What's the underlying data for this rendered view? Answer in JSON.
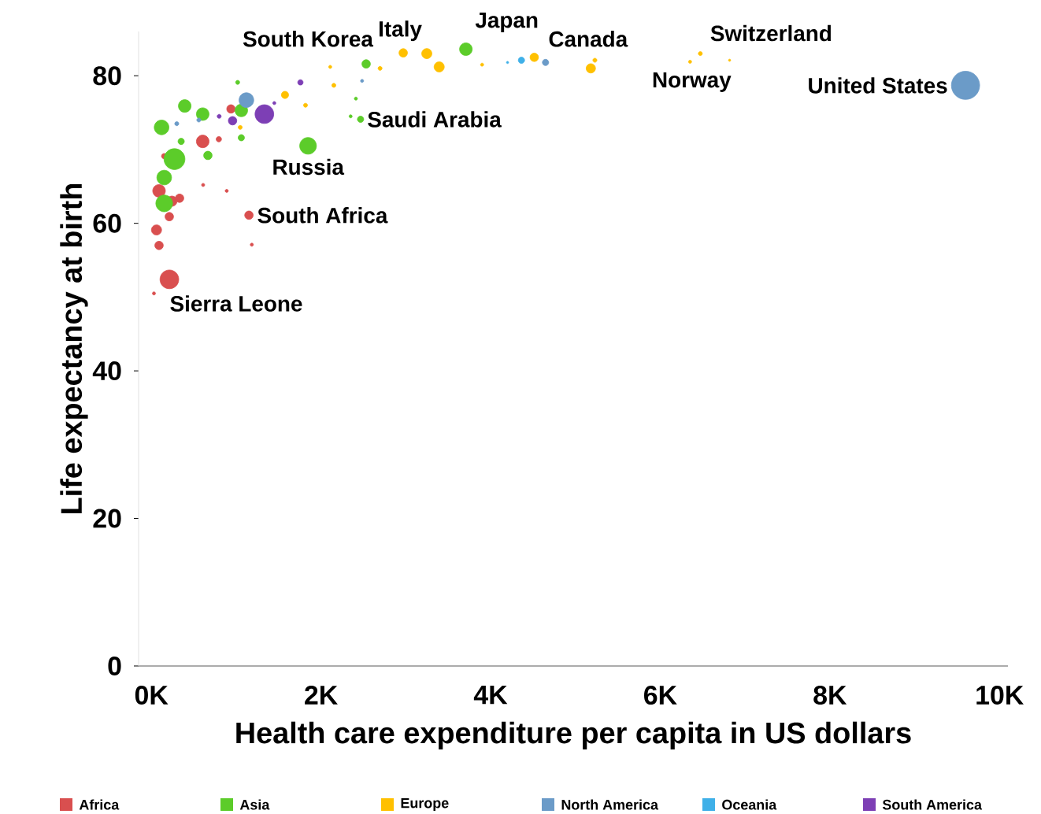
{
  "chart_data": {
    "type": "bubble",
    "xlabel": "Health care expenditure per capita in US dollars",
    "ylabel": "Life expectancy at birth",
    "xlim": [
      -150,
      10100
    ],
    "xticks": [
      {
        "value": 0,
        "label": "0K"
      },
      {
        "value": 2000,
        "label": "2K"
      },
      {
        "value": 4000,
        "label": "4K"
      },
      {
        "value": 6000,
        "label": "6K"
      },
      {
        "value": 8000,
        "label": "8K"
      },
      {
        "value": 10000,
        "label": "10K"
      }
    ],
    "ylim": [
      0,
      86
    ],
    "yticks": [
      0,
      20,
      40,
      60,
      80
    ],
    "legend": "bottom",
    "marker": "circle",
    "series": [
      {
        "name": "Africa",
        "color": "#d94f4f",
        "x": [
          213,
          1151,
          606,
          939,
          91,
          243,
          212,
          61,
          91,
          333,
          152,
          31,
          611,
          889,
          1185,
          796
        ],
        "values": [
          52.4,
          61.1,
          71.1,
          75.5,
          64.4,
          63.0,
          60.9,
          59.1,
          57.0,
          63.4,
          69.1,
          50.5,
          65.2,
          64.4,
          57.1,
          71.4
        ],
        "sizes": [
          0.44,
          0.09,
          0.2,
          0.09,
          0.2,
          0.13,
          0.09,
          0.13,
          0.09,
          0.09,
          0.036,
          0.012,
          0.012,
          0.012,
          0.012,
          0.036
        ]
      },
      {
        "name": "Asia",
        "color": "#5ccc2a",
        "x": [
          1848,
          2467,
          2533,
          3709,
          1061,
          273,
          121,
          394,
          606,
          667,
          1061,
          152,
          152,
          352,
          2412,
          1018,
          2350
        ],
        "values": [
          70.5,
          74.1,
          81.6,
          83.6,
          75.3,
          68.7,
          73.0,
          75.9,
          74.8,
          69.2,
          71.6,
          66.2,
          62.7,
          71.1,
          76.9,
          79.1,
          74.5
        ],
        "sizes": [
          0.35,
          0.05,
          0.09,
          0.2,
          0.2,
          0.55,
          0.27,
          0.2,
          0.2,
          0.09,
          0.05,
          0.27,
          0.35,
          0.05,
          0.012,
          0.02,
          0.012
        ]
      },
      {
        "name": "Europe",
        "color": "#ffc000",
        "x": [
          2970,
          3248,
          3394,
          1576,
          2152,
          2697,
          2109,
          4515,
          5182,
          5230,
          6473,
          6352,
          6818,
          3900,
          1818,
          1048
        ],
        "values": [
          83.1,
          83.0,
          81.2,
          77.4,
          78.7,
          81.0,
          81.2,
          82.5,
          81.0,
          82.1,
          83.0,
          81.9,
          82.1,
          81.5,
          76.0,
          73.0
        ],
        "sizes": [
          0.09,
          0.13,
          0.13,
          0.065,
          0.02,
          0.02,
          0.012,
          0.09,
          0.11,
          0.02,
          0.02,
          0.012,
          0.006,
          0.012,
          0.02,
          0.02
        ]
      },
      {
        "name": "North America",
        "color": "#6b9bc8",
        "x": [
          9600,
          1121,
          4648,
          2485,
          300,
          560
        ],
        "values": [
          78.7,
          76.7,
          81.8,
          79.3,
          73.5,
          74.0
        ],
        "sizes": [
          1,
          0.27,
          0.05,
          0.012,
          0.02,
          0.02
        ]
      },
      {
        "name": "Oceania",
        "color": "#3fb0e8",
        "x": [
          4364,
          4200
        ],
        "values": [
          82.1,
          81.8
        ],
        "sizes": [
          0.05,
          0.006
        ]
      },
      {
        "name": "South America",
        "color": "#7d3fb5",
        "x": [
          1333,
          958,
          1758,
          1450,
          800
        ],
        "values": [
          74.8,
          73.9,
          79.1,
          76.3,
          74.5
        ],
        "sizes": [
          0.44,
          0.09,
          0.036,
          0.012,
          0.02
        ]
      }
    ],
    "annotations": [
      {
        "text": "South Korea",
        "x": 2533,
        "y": 81.6
      },
      {
        "text": "Italy",
        "x": 2970,
        "y": 83.1
      },
      {
        "text": "Japan",
        "x": 3709,
        "y": 83.6
      },
      {
        "text": "Canada",
        "x": 4648,
        "y": 81.8
      },
      {
        "text": "Switzerland",
        "x": 6473,
        "y": 83.0
      },
      {
        "text": "Norway",
        "x": 6352,
        "y": 81.9
      },
      {
        "text": "United States",
        "x": 9600,
        "y": 78.7
      },
      {
        "text": "Saudi Arabia",
        "x": 2467,
        "y": 74.1
      },
      {
        "text": "Russia",
        "x": 1848,
        "y": 70.5
      },
      {
        "text": "South Africa",
        "x": 1151,
        "y": 61.1
      },
      {
        "text": "Sierra Leone",
        "x": 213,
        "y": 52.4
      }
    ]
  }
}
